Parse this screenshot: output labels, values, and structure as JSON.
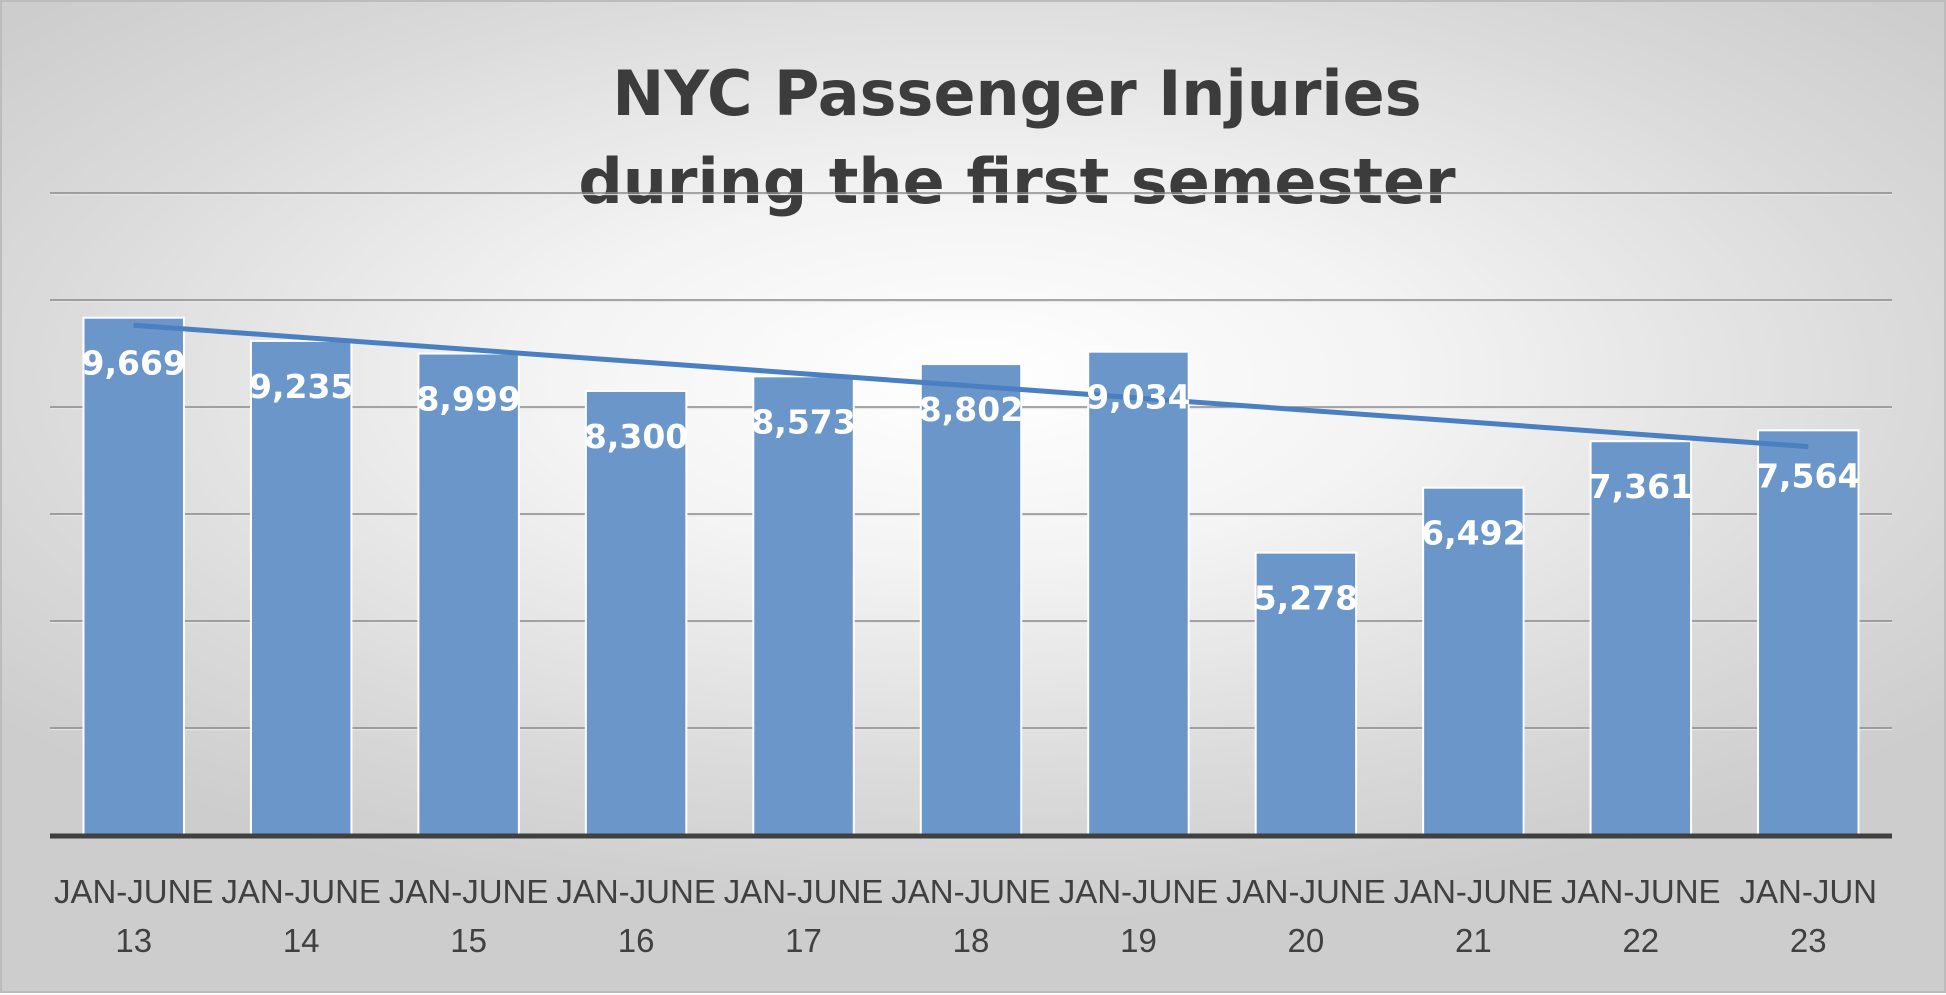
{
  "chart_data": {
    "type": "bar",
    "title": [
      "NYC Passenger Injuries",
      "during the first semester"
    ],
    "categories": [
      [
        "JAN-JUNE",
        "13"
      ],
      [
        "JAN-JUNE",
        "14"
      ],
      [
        "JAN-JUNE",
        "15"
      ],
      [
        "JAN-JUNE",
        "16"
      ],
      [
        "JAN-JUNE",
        "17"
      ],
      [
        "JAN-JUNE",
        "18"
      ],
      [
        "JAN-JUNE",
        "19"
      ],
      [
        "JAN-JUNE",
        "20"
      ],
      [
        "JAN-JUNE",
        "21"
      ],
      [
        "JAN-JUNE",
        "22"
      ],
      [
        "JAN-JUN",
        "23"
      ]
    ],
    "values": [
      9669,
      9235,
      8999,
      8300,
      8573,
      8802,
      9034,
      5278,
      6492,
      7361,
      7564
    ],
    "data_labels": [
      "9,669",
      "9,235",
      "8,999",
      "8,300",
      "8,573",
      "8,802",
      "9,034",
      "5,278",
      "6,492",
      "7,361",
      "7,564"
    ],
    "trendline": {
      "type": "linear",
      "start": 9529,
      "end": 7260
    },
    "ylim": [
      0,
      12000
    ],
    "gridlines": [
      2000,
      4000,
      6000,
      8000,
      10000,
      12000
    ],
    "xlabel": "",
    "ylabel": "",
    "legend": "none",
    "colors": {
      "bar": "#6a96c9",
      "bar_border": "#ffffff",
      "trendline": "#4a7fc1",
      "axis": "#404040",
      "gridline": "#8a8a8a"
    }
  }
}
